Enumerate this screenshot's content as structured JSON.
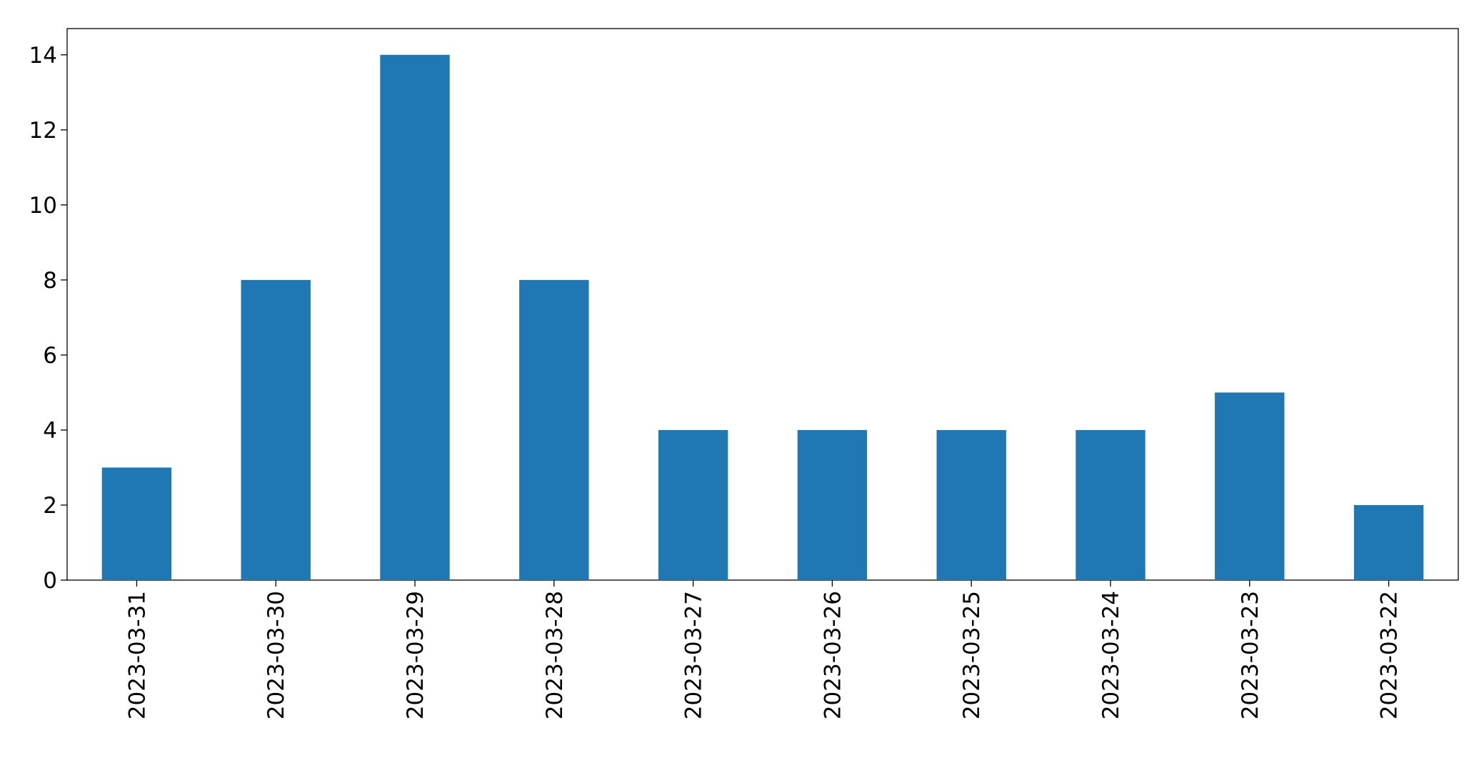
{
  "chart_data": {
    "type": "bar",
    "categories": [
      "2023-03-31",
      "2023-03-30",
      "2023-03-29",
      "2023-03-28",
      "2023-03-27",
      "2023-03-26",
      "2023-03-25",
      "2023-03-24",
      "2023-03-23",
      "2023-03-22"
    ],
    "values": [
      3,
      8,
      14,
      8,
      4,
      4,
      4,
      4,
      5,
      2
    ],
    "color": "#1f77b4",
    "ylim": [
      0,
      14.7
    ],
    "yticks": [
      0,
      2,
      4,
      6,
      8,
      10,
      12,
      14
    ],
    "grid": false
  }
}
